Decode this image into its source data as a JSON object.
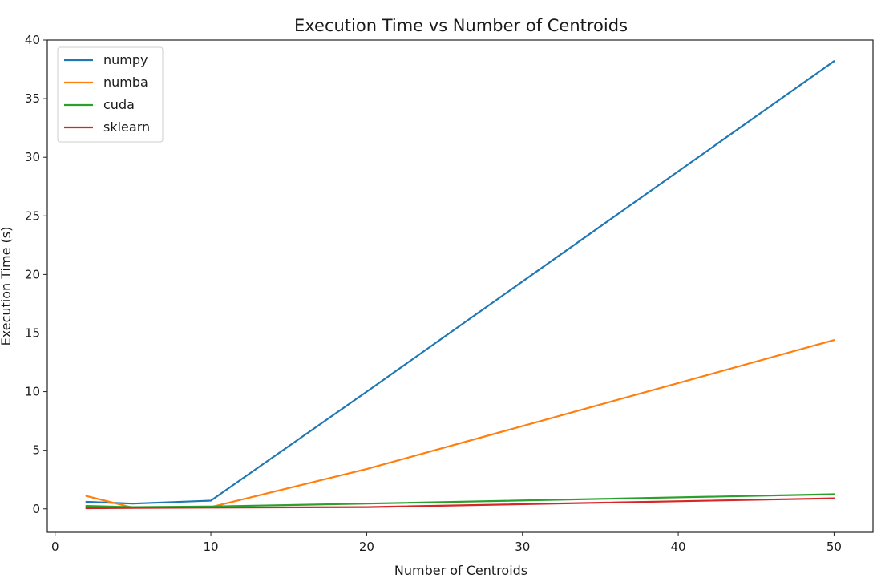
{
  "chart_data": {
    "type": "line",
    "title": "Execution Time vs Number of Centroids",
    "xlabel": "Number of Centroids",
    "ylabel": "Execution Time (s)",
    "xlim": [
      -0.5,
      52.5
    ],
    "ylim": [
      -2,
      40
    ],
    "xticks": [
      0,
      10,
      20,
      30,
      40,
      50
    ],
    "yticks": [
      0,
      5,
      10,
      15,
      20,
      25,
      30,
      35,
      40
    ],
    "grid": false,
    "legend_position": "upper-left",
    "x": [
      2,
      5,
      10,
      20,
      50
    ],
    "series": [
      {
        "name": "numpy",
        "color": "#1f77b4",
        "values": [
          0.6,
          0.45,
          0.7,
          10.0,
          38.2
        ]
      },
      {
        "name": "numba",
        "color": "#ff7f0e",
        "values": [
          1.1,
          0.1,
          0.15,
          3.4,
          14.4
        ]
      },
      {
        "name": "cuda",
        "color": "#2ca02c",
        "values": [
          0.25,
          0.15,
          0.2,
          0.45,
          1.25
        ]
      },
      {
        "name": "sklearn",
        "color": "#d62728",
        "values": [
          0.05,
          0.08,
          0.1,
          0.15,
          0.9
        ]
      }
    ]
  }
}
